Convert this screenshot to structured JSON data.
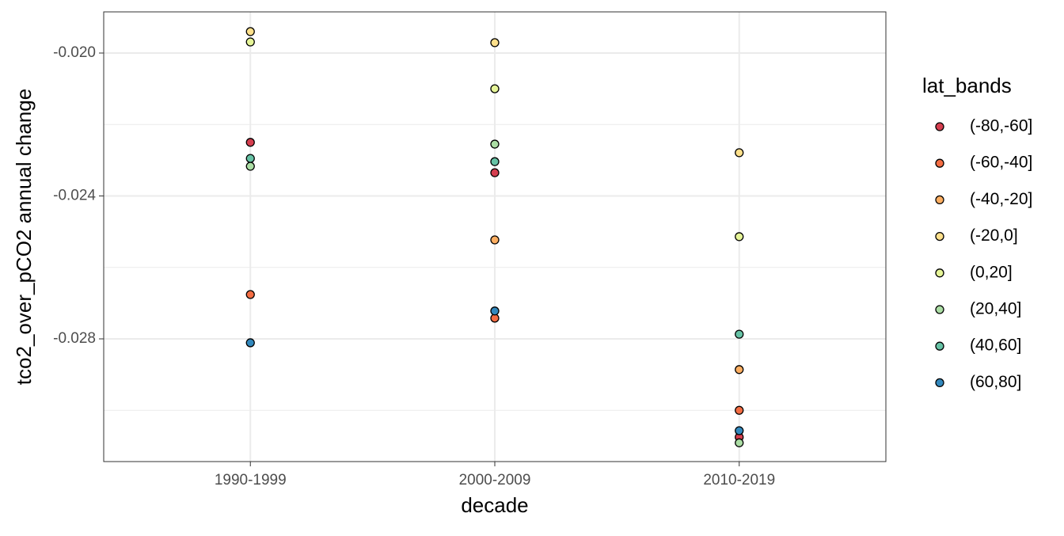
{
  "chart_data": {
    "type": "scatter",
    "x_label": "decade",
    "y_label": "tco2_over_pCO2 annual change",
    "categories": [
      "1990-1999",
      "2000-2009",
      "2010-2019"
    ],
    "legend_title": "lat_bands",
    "series": [
      {
        "name": "(-80,-60]",
        "color": "#d53e4f",
        "values": [
          -0.0225,
          -0.02335,
          -0.03075
        ]
      },
      {
        "name": "(-60,-40]",
        "color": "#f46d43",
        "values": [
          -0.02676,
          -0.02742,
          -0.03
        ]
      },
      {
        "name": "(-40,-20]",
        "color": "#fdae61",
        "values": [
          null,
          -0.02523,
          -0.02886
        ]
      },
      {
        "name": "(-20,0]",
        "color": "#fee08b",
        "values": [
          -0.0194,
          -0.01971,
          -0.02279
        ]
      },
      {
        "name": "(0,20]",
        "color": "#e6f598",
        "values": [
          -0.01969,
          -0.021,
          -0.02514
        ]
      },
      {
        "name": "(20,40]",
        "color": "#abdda4",
        "values": [
          -0.02317,
          -0.02255,
          -0.03091
        ]
      },
      {
        "name": "(40,60]",
        "color": "#66c2a5",
        "values": [
          -0.02295,
          -0.02304,
          -0.02787
        ]
      },
      {
        "name": "(60,80]",
        "color": "#3288bd",
        "values": [
          -0.02811,
          -0.02722,
          -0.03057
        ]
      }
    ],
    "ylim": [
      -0.031435,
      -0.018848
    ],
    "yticks": [
      {
        "value": -0.02,
        "label": "-0.020"
      },
      {
        "value": -0.024,
        "label": "-0.024"
      },
      {
        "value": -0.028,
        "label": "-0.028"
      }
    ],
    "minor_yticks": [
      -0.022,
      -0.026,
      -0.03
    ],
    "grid": true,
    "legend": "right"
  }
}
